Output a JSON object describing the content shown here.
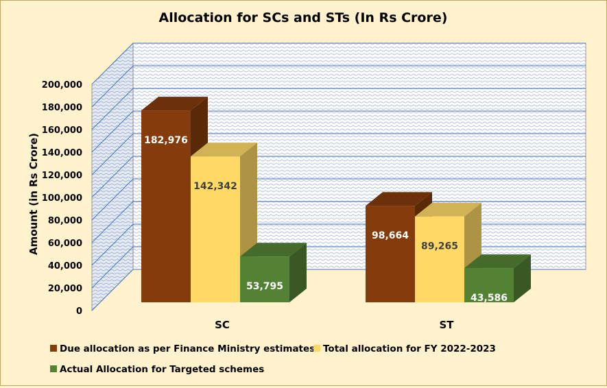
{
  "chart_data": {
    "type": "bar",
    "title": "Allocation for SCs and STs (In Rs Crore)",
    "xlabel": "",
    "ylabel": "Amount (in Rs Crore)",
    "ylim": [
      0,
      200000
    ],
    "y_ticks": [
      0,
      20000,
      40000,
      60000,
      80000,
      100000,
      120000,
      140000,
      160000,
      180000,
      200000
    ],
    "y_tick_labels": [
      "0",
      "20,000",
      "40,000",
      "60,000",
      "80,000",
      "100,000",
      "120,000",
      "140,000",
      "160,000",
      "180,000",
      "200,000"
    ],
    "categories": [
      "SC",
      "ST"
    ],
    "series": [
      {
        "name": "Due allocation as per Finance Ministry estimates",
        "values": [
          182976,
          98664
        ],
        "labels": [
          "182,976",
          "98,664"
        ],
        "color": "#843c0c"
      },
      {
        "name": "Total allocation for FY 2022-2023",
        "values": [
          142342,
          89265
        ],
        "labels": [
          "142,342",
          "89,265"
        ],
        "color": "#ffd966"
      },
      {
        "name": "Actual Allocation for Targeted schemes",
        "values": [
          53795,
          43586
        ],
        "labels": [
          "53,795",
          "43,586"
        ],
        "color": "#548235"
      }
    ],
    "grid": true,
    "legend": "bottom-left"
  }
}
